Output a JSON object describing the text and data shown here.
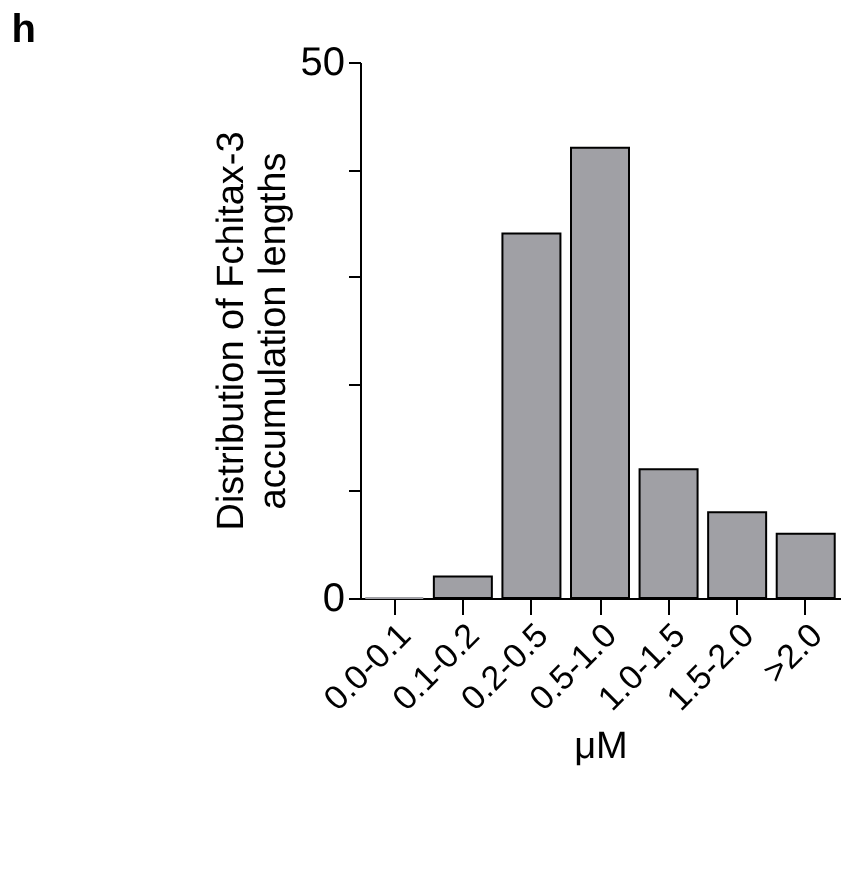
{
  "chart_data": {
    "type": "bar",
    "title": "h",
    "xlabel": "μM",
    "ylabel": "Distribution of Fchitax-3\naccumulation lengths",
    "categories": [
      "0.0-0.1",
      "0.1-0.2",
      "0.2-0.5",
      "0.5-1.0",
      "1.0-1.5",
      "1.5-2.0",
      ">2.0"
    ],
    "values": [
      0,
      2,
      34,
      42,
      12,
      8,
      6
    ],
    "color": "#a0a0a5",
    "ylim": [
      0,
      50
    ],
    "yticks": [
      0,
      {
        "value": 10,
        "label": null
      },
      {
        "value": 20,
        "label": null
      },
      {
        "value": 30,
        "label": null
      },
      {
        "value": 40,
        "label": null
      },
      50
    ],
    "grid": false
  }
}
